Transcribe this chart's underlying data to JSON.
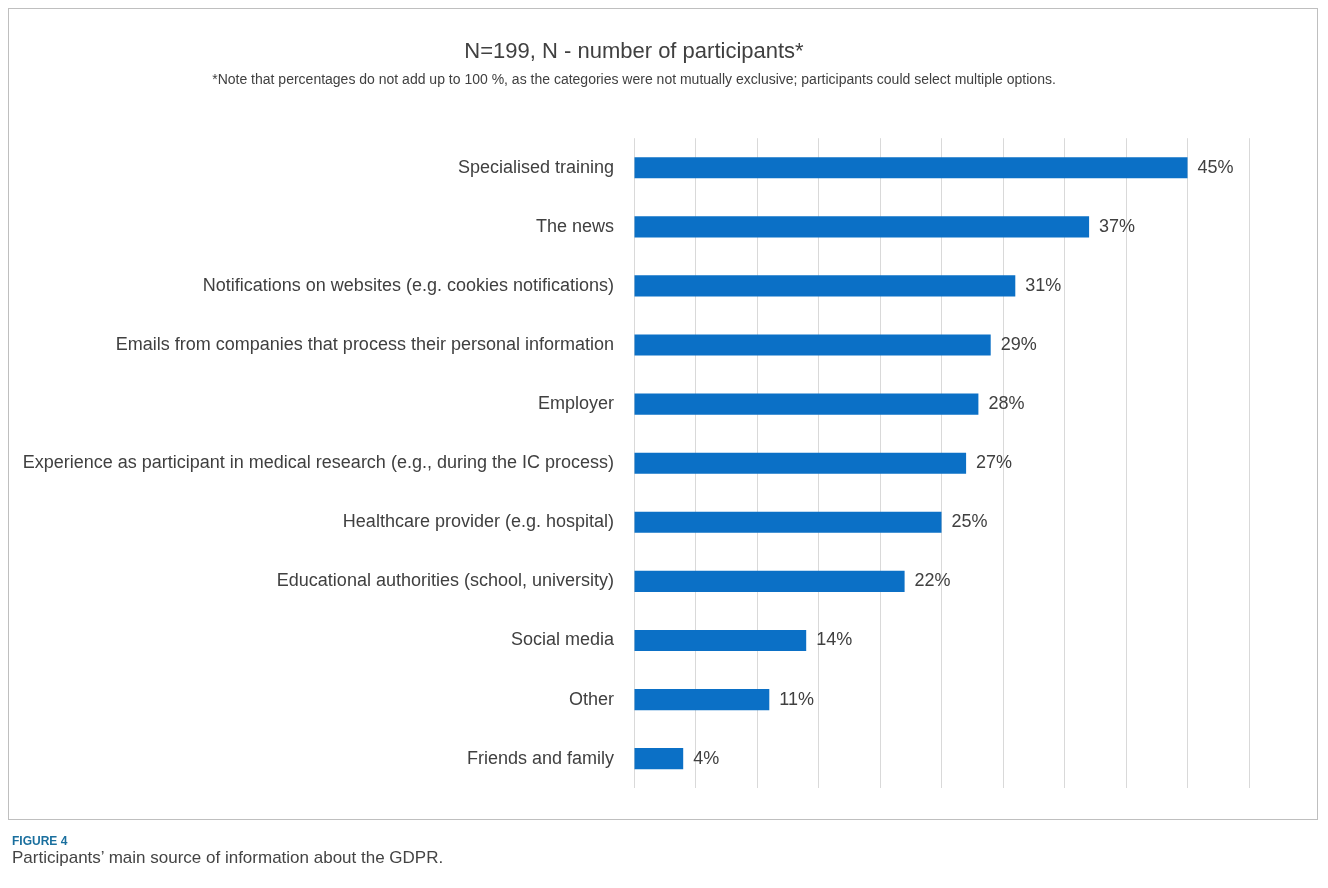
{
  "chart_data": {
    "type": "bar",
    "orientation": "horizontal",
    "title": "N=199, N - number of participants*",
    "subtitle": "*Note that percentages do not add up to 100 %, as the categories were not mutually exclusive; participants could select multiple options.",
    "categories": [
      "Specialised training",
      "The news",
      "Notifications on websites (e.g. cookies notifications)",
      "Emails from companies that process their personal information",
      "Employer",
      "Experience as participant in medical research (e.g., during the IC process)",
      "Healthcare provider (e.g. hospital)",
      "Educational authorities (school, university)",
      "Social media",
      "Other",
      "Friends and family"
    ],
    "values": [
      45,
      37,
      31,
      29,
      28,
      27,
      25,
      22,
      14,
      11,
      4
    ],
    "value_labels": [
      "45%",
      "37%",
      "31%",
      "29%",
      "28%",
      "27%",
      "25%",
      "22%",
      "14%",
      "11%",
      "4%"
    ],
    "color": "#0b70c6",
    "xlim": [
      0,
      50
    ],
    "xticks": [
      {
        "value": 0,
        "label": null
      },
      {
        "value": 5,
        "label": null
      },
      {
        "value": 10,
        "label": null
      },
      {
        "value": 15,
        "label": null
      },
      {
        "value": 20,
        "label": null
      },
      {
        "value": 25,
        "label": null
      },
      {
        "value": 30,
        "label": null
      },
      {
        "value": 35,
        "label": null
      },
      {
        "value": 40,
        "label": null
      },
      {
        "value": 45,
        "label": null
      },
      {
        "value": 50,
        "label": null
      }
    ],
    "grid": "x",
    "tick_labels": "y",
    "legend": false,
    "annotations": [
      "FIGURE 4",
      "Participants’ main source of information about the GDPR."
    ]
  }
}
